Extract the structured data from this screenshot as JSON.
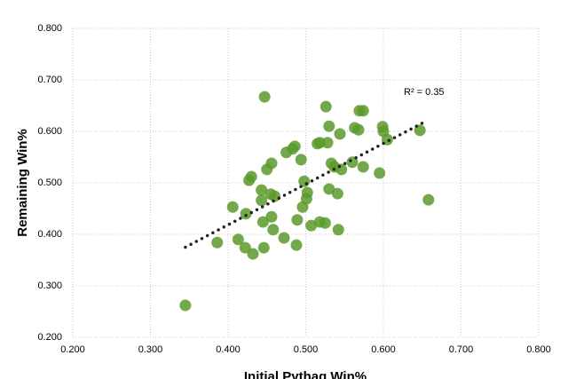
{
  "chart_data": {
    "type": "scatter",
    "xlabel": "Initial Pythag Win%",
    "ylabel": "Remaining Win%",
    "annotation": "R² = 0.35",
    "color": "#5a9a2a",
    "trendline_color": "#222222",
    "grid": true,
    "xlim": [
      0.2,
      0.8
    ],
    "ylim": [
      0.2,
      0.8
    ],
    "xticks": [
      {
        "value": 0.2,
        "label": "0.200"
      },
      {
        "value": 0.3,
        "label": "0.300"
      },
      {
        "value": 0.4,
        "label": "0.400"
      },
      {
        "value": 0.5,
        "label": "0.500"
      },
      {
        "value": 0.6,
        "label": "0.600"
      },
      {
        "value": 0.7,
        "label": "0.700"
      },
      {
        "value": 0.8,
        "label": "0.800"
      }
    ],
    "yticks": [
      {
        "value": 0.2,
        "label": "0.200"
      },
      {
        "value": 0.3,
        "label": "0.300"
      },
      {
        "value": 0.4,
        "label": "0.400"
      },
      {
        "value": 0.5,
        "label": "0.500"
      },
      {
        "value": 0.6,
        "label": "0.600"
      },
      {
        "value": 0.7,
        "label": "0.700"
      },
      {
        "value": 0.8,
        "label": "0.800"
      }
    ],
    "trendline": {
      "x": [
        0.345,
        0.655
      ],
      "y": [
        0.375,
        0.62
      ]
    },
    "x": [
      0.345,
      0.386,
      0.406,
      0.413,
      0.422,
      0.423,
      0.427,
      0.43,
      0.432,
      0.443,
      0.443,
      0.445,
      0.446,
      0.447,
      0.45,
      0.455,
      0.456,
      0.456,
      0.458,
      0.46,
      0.472,
      0.475,
      0.483,
      0.486,
      0.488,
      0.489,
      0.494,
      0.496,
      0.498,
      0.501,
      0.502,
      0.507,
      0.515,
      0.518,
      0.518,
      0.525,
      0.526,
      0.528,
      0.53,
      0.53,
      0.533,
      0.537,
      0.541,
      0.542,
      0.544,
      0.546,
      0.56,
      0.563,
      0.568,
      0.569,
      0.574,
      0.574,
      0.595,
      0.599,
      0.6,
      0.605,
      0.647,
      0.658
    ],
    "values": [
      0.262,
      0.384,
      0.453,
      0.39,
      0.374,
      0.44,
      0.505,
      0.512,
      0.362,
      0.486,
      0.466,
      0.424,
      0.374,
      0.667,
      0.526,
      0.478,
      0.434,
      0.538,
      0.409,
      0.474,
      0.393,
      0.559,
      0.566,
      0.571,
      0.379,
      0.428,
      0.545,
      0.453,
      0.503,
      0.469,
      0.481,
      0.417,
      0.576,
      0.578,
      0.424,
      0.422,
      0.648,
      0.578,
      0.488,
      0.61,
      0.538,
      0.531,
      0.479,
      0.409,
      0.595,
      0.526,
      0.54,
      0.607,
      0.603,
      0.64,
      0.64,
      0.531,
      0.519,
      0.609,
      0.6,
      0.584,
      0.602,
      0.467
    ]
  }
}
